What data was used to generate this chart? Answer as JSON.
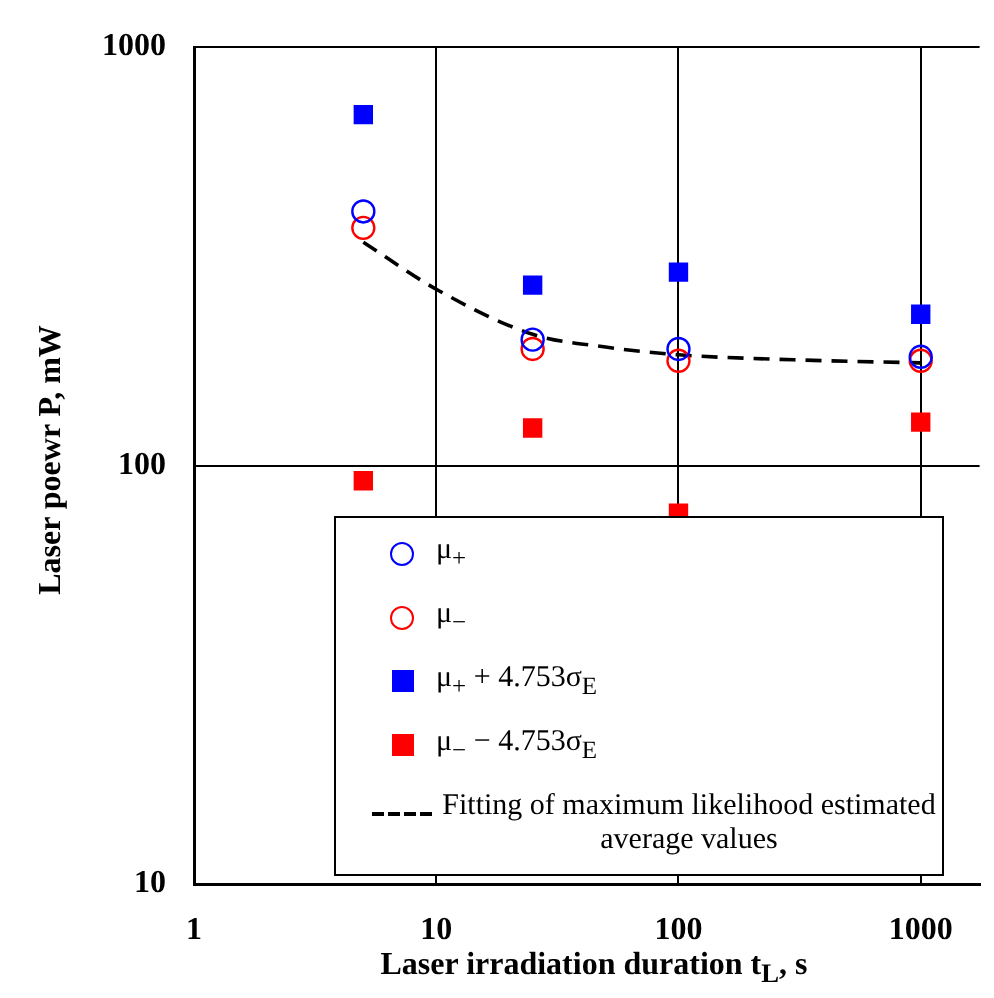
{
  "chart_data": {
    "type": "scatter",
    "xlabel": "Laser irradiation duration t$_{L}$, s",
    "ylabel": "Laser poewr P, mW",
    "log": "xy",
    "xlim": [
      1,
      1750
    ],
    "xticks": [
      1,
      10,
      100,
      1000
    ],
    "ylim": [
      10,
      1000
    ],
    "yticks": [
      10,
      100,
      1000
    ],
    "grid": true,
    "legend": "bottom",
    "series": [
      {
        "name": "μ$_{+}$",
        "color": "#0000ff",
        "marker": "circle",
        "x": [
          5,
          25,
          100,
          1000
        ],
        "values": [
          405,
          200,
          190,
          182
        ]
      },
      {
        "name": "μ$_{−}$",
        "color": "#ff0000",
        "marker": "circle",
        "x": [
          5,
          25,
          100,
          1000
        ],
        "values": [
          370,
          190,
          178,
          178
        ]
      },
      {
        "name": "μ$_{+}$ + 4.753σ$_{E}$",
        "color": "#0000ff",
        "marker": "square",
        "x": [
          5,
          25,
          100,
          1000
        ],
        "values": [
          690,
          270,
          290,
          230
        ]
      },
      {
        "name": "μ$_{−}$ − 4.753σ$_{E}$",
        "color": "#ff0000",
        "marker": "square",
        "x": [
          5,
          25,
          100,
          1000
        ],
        "values": [
          92,
          123,
          77,
          127
        ]
      },
      {
        "name": "Fitting of maximum likelihood estimated average values",
        "type": "line",
        "color": "#000000",
        "marker": "none",
        "line_style": "dashed",
        "x": [
          5,
          10,
          25,
          50,
          100,
          300,
          1000
        ],
        "values": [
          342,
          264,
          206,
          192,
          184,
          179,
          176
        ]
      }
    ]
  }
}
